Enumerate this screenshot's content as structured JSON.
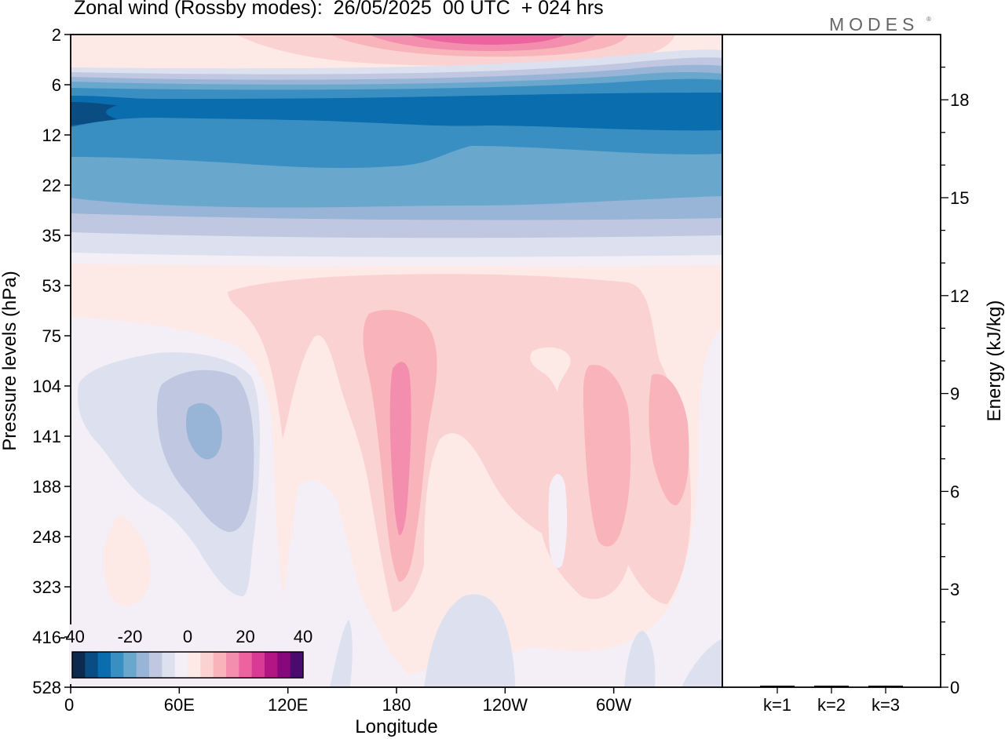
{
  "title": "Zonal wind (Rossby modes):  26/05/2025  00 UTC  + 024 hrs",
  "brand": "MODES",
  "brand_mark": "®",
  "chart_data": [
    {
      "type": "heatmap",
      "title": "Zonal wind (Rossby modes):  26/05/2025  00 UTC  + 024 hrs",
      "xlabel": "Longitude",
      "ylabel": "Pressure levels (hPa)",
      "x_ticks": [
        "0",
        "60E",
        "120E",
        "180",
        "120W",
        "60W"
      ],
      "x_tick_degrees": [
        0,
        60,
        120,
        180,
        240,
        300
      ],
      "xlim": [
        0,
        360
      ],
      "y_ticks": [
        "2",
        "6",
        "12",
        "22",
        "35",
        "53",
        "75",
        "104",
        "141",
        "188",
        "248",
        "323",
        "416",
        "528"
      ],
      "y_axis": "pressure levels, top to bottom",
      "colorbar": {
        "tick_labels": [
          "-40",
          "-20",
          "0",
          "20",
          "40"
        ],
        "min": -40,
        "max": 40,
        "step": 5,
        "colors": [
          "#0d2a4e",
          "#0a4d82",
          "#0a6eae",
          "#3a8fc2",
          "#6aa7cc",
          "#98b4d6",
          "#bfc8e0",
          "#dde0ee",
          "#f4eff6",
          "#fde9e6",
          "#fbd2d2",
          "#f8b4ba",
          "#f48eaf",
          "#ec63a0",
          "#d93a94",
          "#b41584",
          "#87087c",
          "#4a0a6e"
        ]
      },
      "grid": false
    },
    {
      "type": "bar",
      "ylabel": "Energy (kJ/kg)",
      "categories": [
        "k=1",
        "k=2",
        "k=3"
      ],
      "values": [
        0.04,
        0.03,
        0.02
      ],
      "ylim": [
        0,
        20
      ],
      "y_ticks": [
        "0",
        "3",
        "6",
        "9",
        "12",
        "15",
        "18"
      ],
      "grid": false
    }
  ]
}
